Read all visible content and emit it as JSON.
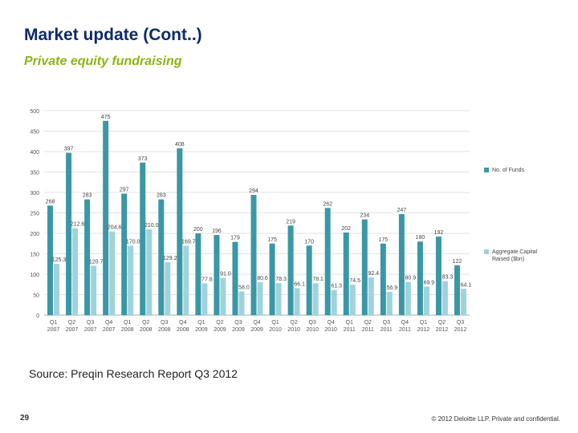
{
  "slide": {
    "title": "Market update (Cont..)",
    "subtitle": "Private equity fundraising",
    "source": "Source: Preqin Research Report Q3 2012",
    "page_number": "29",
    "copyright": "© 2012 Deloitte LLP. Private and confidential."
  },
  "colors": {
    "title": "#0d2a6b",
    "subtitle": "#8cb414",
    "funds_series": "#3a97a6",
    "capital_series": "#9fd3dc"
  },
  "chart_data": {
    "type": "bar",
    "title": "",
    "xlabel": "",
    "ylabel": "",
    "ylim": [
      0,
      500
    ],
    "yticks": [
      0,
      50,
      100,
      150,
      200,
      250,
      300,
      350,
      400,
      450,
      500
    ],
    "grid": true,
    "legend_position": "right",
    "categories": [
      [
        "Q1",
        "2007"
      ],
      [
        "Q2",
        "2007"
      ],
      [
        "Q3",
        "2007"
      ],
      [
        "Q4",
        "2007"
      ],
      [
        "Q1",
        "2008"
      ],
      [
        "Q2",
        "2008"
      ],
      [
        "Q3",
        "2008"
      ],
      [
        "Q4",
        "2008"
      ],
      [
        "Q1",
        "2009"
      ],
      [
        "Q2",
        "2009"
      ],
      [
        "Q3",
        "2009"
      ],
      [
        "Q4",
        "2009"
      ],
      [
        "Q1",
        "2010"
      ],
      [
        "Q2",
        "2010"
      ],
      [
        "Q3",
        "2010"
      ],
      [
        "Q4",
        "2010"
      ],
      [
        "Q1",
        "2011"
      ],
      [
        "Q2",
        "2011"
      ],
      [
        "Q3",
        "2011"
      ],
      [
        "Q4",
        "2011"
      ],
      [
        "Q1",
        "2012"
      ],
      [
        "Q2",
        "2012"
      ],
      [
        "Q3",
        "2012"
      ]
    ],
    "series": [
      {
        "name": "No. of Funds",
        "values": [
          268,
          397,
          283,
          475,
          297,
          373,
          283,
          408,
          200,
          196,
          179,
          294,
          175,
          219,
          170,
          262,
          202,
          234,
          175,
          247,
          180,
          192,
          122
        ],
        "labels": [
          "268",
          "397",
          "283",
          "475",
          "297",
          "373",
          "283",
          "408",
          "200",
          "196",
          "179",
          "294",
          "175",
          "219",
          "170",
          "262",
          "202",
          "234",
          "175",
          "247",
          "180",
          "192",
          "122"
        ]
      },
      {
        "name": "Aggregate Capital Raised ($bn)",
        "values": [
          125.3,
          212.6,
          120.7,
          204.6,
          170.0,
          210.0,
          129.2,
          169.7,
          77.8,
          91.0,
          58.0,
          80.6,
          78.3,
          66.1,
          78.1,
          61.3,
          74.5,
          92.4,
          56.9,
          80.9,
          69.9,
          83.3,
          64.1
        ],
        "labels": [
          "125.3",
          "212.6",
          "120.7",
          "204.6",
          "170.0",
          "210.0",
          "129.2",
          "169.7",
          "77.8",
          "91.0",
          "58.0",
          "80.6",
          "78.3",
          "66.1",
          "78.1",
          "61.3",
          "74.5",
          "92.4",
          "56.9",
          "80.9",
          "69.9",
          "83.3",
          "64.1"
        ]
      }
    ]
  }
}
